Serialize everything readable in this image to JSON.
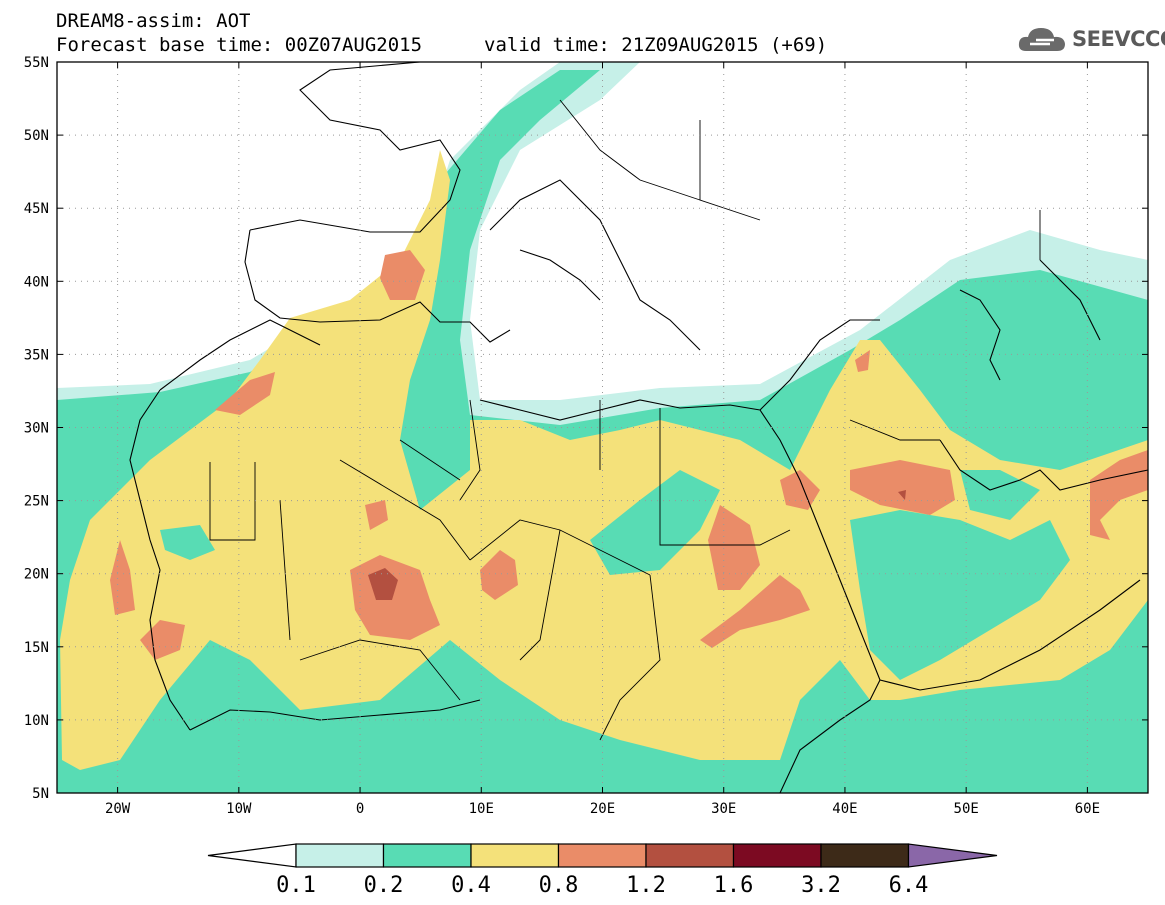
{
  "header": {
    "line1": "DREAM8-assim: AOT",
    "line2": "Forecast base time: 00Z07AUG2015",
    "valid": "valid time: 21Z09AUG2015 (+69)"
  },
  "logo": {
    "text": "SEEVCCC",
    "icon": "cloud-icon"
  },
  "map": {
    "lat_labels": [
      "55N",
      "50N",
      "45N",
      "40N",
      "35N",
      "30N",
      "25N",
      "20N",
      "15N",
      "10N",
      "5N"
    ],
    "lon_labels": [
      "20W",
      "10W",
      "0",
      "10E",
      "20E",
      "30E",
      "40E",
      "50E",
      "60E"
    ],
    "lat_range": [
      5,
      55
    ],
    "lon_range": [
      -25,
      65
    ],
    "grid": "dotted"
  },
  "colorbar": {
    "labels": [
      "0.1",
      "0.2",
      "0.4",
      "0.8",
      "1.2",
      "1.6",
      "3.2",
      "6.4"
    ],
    "colors": [
      "#c6f0e8",
      "#58dcb4",
      "#f4e17a",
      "#ea8c68",
      "#b35040",
      "#7c0a22",
      "#3d2a18",
      "#8a67a8"
    ],
    "under_color": "#ffffff"
  }
}
